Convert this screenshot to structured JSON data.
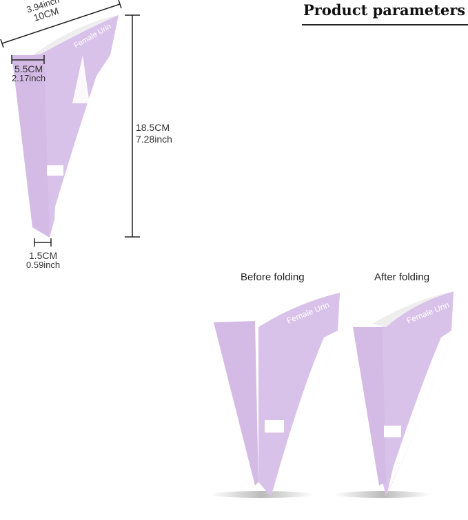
{
  "title": "Product parameters",
  "dimensions": {
    "top_width": {
      "inch": "3.94inch",
      "cm": "10CM"
    },
    "opening": {
      "cm": "5.5CM",
      "inch": "2.17inch"
    },
    "height": {
      "cm": "18.5CM",
      "inch": "7.28inch"
    },
    "tip": {
      "cm": "1.5CM",
      "inch": "0.59inch"
    }
  },
  "product_print_text": "Female Urin",
  "views": [
    {
      "label": "Before folding"
    },
    {
      "label": "After folding"
    }
  ],
  "colors": {
    "product": "#d9c2ea",
    "product_dark": "#c9a9e0",
    "accent_pink": "#e3a6dc"
  }
}
